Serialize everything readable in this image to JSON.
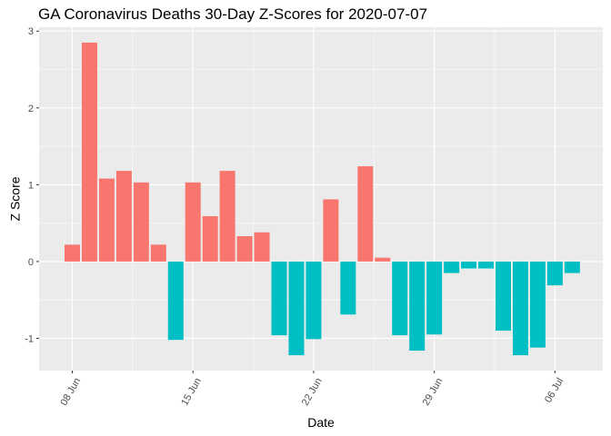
{
  "chart_data": {
    "type": "bar",
    "title": "GA Coronavirus Deaths 30-Day Z-Scores for 2020-07-07",
    "xlabel": "Date",
    "ylabel": "Z Score",
    "ylim": [
      -1.42,
      3.05
    ],
    "yticks": [
      -1,
      0,
      1,
      2,
      3
    ],
    "colors": {
      "positive": "#F8766D",
      "negative": "#00BFC4",
      "panel": "#EBEBEB",
      "grid": "#FFFFFF"
    },
    "xticks": [
      {
        "index": 0,
        "label": "08 Jun"
      },
      {
        "index": 7,
        "label": "15 Jun"
      },
      {
        "index": 14,
        "label": "22 Jun"
      },
      {
        "index": 21,
        "label": "29 Jun"
      },
      {
        "index": 28,
        "label": "06 Jul"
      }
    ],
    "categories": [
      "2020-06-08",
      "2020-06-09",
      "2020-06-10",
      "2020-06-11",
      "2020-06-12",
      "2020-06-13",
      "2020-06-14",
      "2020-06-15",
      "2020-06-16",
      "2020-06-17",
      "2020-06-18",
      "2020-06-19",
      "2020-06-20",
      "2020-06-21",
      "2020-06-22",
      "2020-06-23",
      "2020-06-24",
      "2020-06-25",
      "2020-06-26",
      "2020-06-27",
      "2020-06-28",
      "2020-06-29",
      "2020-06-30",
      "2020-07-01",
      "2020-07-02",
      "2020-07-03",
      "2020-07-04",
      "2020-07-05",
      "2020-07-06",
      "2020-07-07"
    ],
    "values": [
      0.22,
      2.85,
      1.08,
      1.18,
      1.03,
      0.22,
      -1.02,
      1.03,
      0.59,
      1.18,
      0.33,
      0.38,
      -0.96,
      -1.22,
      -1.01,
      0.81,
      -0.69,
      1.24,
      0.05,
      -0.96,
      -1.16,
      -0.95,
      -0.15,
      -0.09,
      -0.09,
      -0.9,
      -1.22,
      -1.12,
      -0.31,
      -0.15
    ]
  }
}
